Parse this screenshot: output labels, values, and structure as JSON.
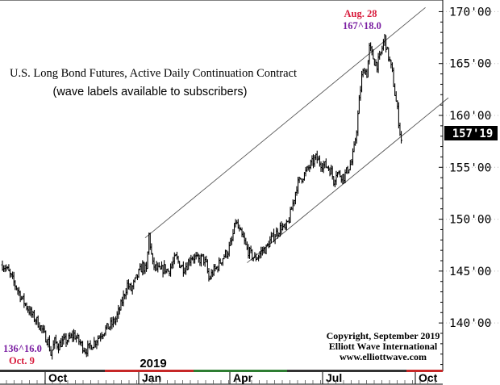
{
  "chart_data": {
    "type": "ohlc",
    "title": "U.S. Long Bond Futures, Active Daily Continuation Contract",
    "subtitle": "(wave labels available to subscribers)",
    "y_ticks": [
      "140'00",
      "145'00",
      "150'00",
      "155'00",
      "160'00",
      "165'00",
      "170'00"
    ],
    "y_tick_values": [
      140,
      145,
      150,
      155,
      160,
      165,
      170
    ],
    "ylim": [
      135.5,
      170.5
    ],
    "x_ticks": [
      "Oct",
      "Jan",
      "Apr",
      "Jul",
      "Oct"
    ],
    "year_label": "2019",
    "last_price_label": "157'19",
    "last_price": 157.6,
    "annotations": {
      "high_date": "Aug. 28",
      "high_value": "167^18.0",
      "low_value": "136^16.0",
      "low_date": "Oct. 9"
    },
    "copyright": [
      "Copyright, September 2019",
      "Elliott Wave International",
      "www.elliottwave.com"
    ],
    "series": [
      {
        "values": [
          [
            0,
            145.6
          ],
          [
            3,
            145.3
          ],
          [
            6,
            144.6
          ],
          [
            9,
            143.9
          ],
          [
            12,
            143.2
          ],
          [
            15,
            142.4
          ],
          [
            18,
            141.8
          ],
          [
            21,
            141.2
          ],
          [
            24,
            140.6
          ],
          [
            27,
            140.2
          ],
          [
            30,
            139.6
          ],
          [
            33,
            138.8
          ],
          [
            36,
            138.2
          ],
          [
            38,
            137.0
          ],
          [
            41,
            138.2
          ],
          [
            44,
            137.8
          ],
          [
            47,
            138.2
          ],
          [
            50,
            138.3
          ],
          [
            53,
            138.5
          ],
          [
            56,
            138.9
          ],
          [
            59,
            138.4
          ],
          [
            62,
            137.9
          ],
          [
            65,
            137.4
          ],
          [
            68,
            137.6
          ],
          [
            71,
            138.0
          ],
          [
            74,
            138.4
          ],
          [
            77,
            138.9
          ],
          [
            80,
            139.3
          ],
          [
            83,
            139.6
          ],
          [
            86,
            139.9
          ],
          [
            89,
            140.4
          ],
          [
            92,
            141.3
          ],
          [
            95,
            142.5
          ],
          [
            98,
            143.7
          ],
          [
            101,
            143.2
          ],
          [
            104,
            144.0
          ],
          [
            107,
            144.8
          ],
          [
            110,
            145.5
          ],
          [
            113,
            145.0
          ],
          [
            115,
            148.5
          ],
          [
            118,
            145.6
          ],
          [
            121,
            145.2
          ],
          [
            124,
            145.0
          ],
          [
            127,
            145.3
          ],
          [
            130,
            145.0
          ],
          [
            133,
            145.6
          ],
          [
            136,
            146.3
          ],
          [
            139,
            145.7
          ],
          [
            142,
            145.3
          ],
          [
            145,
            145.6
          ],
          [
            148,
            146.4
          ],
          [
            151,
            146.3
          ],
          [
            154,
            146.0
          ],
          [
            157,
            146.3
          ],
          [
            160,
            145.6
          ],
          [
            162,
            144.2
          ],
          [
            165,
            144.9
          ],
          [
            168,
            145.3
          ],
          [
            171,
            145.9
          ],
          [
            174,
            146.5
          ],
          [
            177,
            146.9
          ],
          [
            180,
            147.9
          ],
          [
            183,
            149.8
          ],
          [
            186,
            148.8
          ],
          [
            189,
            148.1
          ],
          [
            192,
            147.1
          ],
          [
            195,
            146.6
          ],
          [
            198,
            146.2
          ],
          [
            201,
            146.5
          ],
          [
            204,
            147.0
          ],
          [
            207,
            147.2
          ],
          [
            210,
            147.9
          ],
          [
            213,
            148.4
          ],
          [
            216,
            148.8
          ],
          [
            219,
            149.3
          ],
          [
            222,
            149.0
          ],
          [
            225,
            150.0
          ],
          [
            228,
            151.5
          ],
          [
            231,
            153.2
          ],
          [
            234,
            153.9
          ],
          [
            237,
            154.3
          ],
          [
            240,
            154.9
          ],
          [
            243,
            155.4
          ],
          [
            246,
            155.9
          ],
          [
            249,
            155.5
          ],
          [
            252,
            155.2
          ],
          [
            255,
            155.1
          ],
          [
            258,
            154.6
          ],
          [
            260,
            153.7
          ],
          [
            262,
            154.5
          ],
          [
            265,
            154.3
          ],
          [
            268,
            154.1
          ],
          [
            271,
            154.8
          ],
          [
            274,
            155.5
          ],
          [
            276,
            156.8
          ],
          [
            278,
            158.7
          ],
          [
            280,
            161.4
          ],
          [
            282,
            163.7
          ],
          [
            284,
            164.5
          ],
          [
            286,
            164.0
          ],
          [
            288,
            166.5
          ],
          [
            290,
            165.9
          ],
          [
            292,
            165.2
          ],
          [
            294,
            164.9
          ],
          [
            296,
            165.5
          ],
          [
            298,
            166.5
          ],
          [
            300,
            167.5
          ],
          [
            302,
            166.1
          ],
          [
            304,
            165.2
          ],
          [
            306,
            164.0
          ],
          [
            308,
            162.1
          ],
          [
            310,
            160.5
          ],
          [
            312,
            158.4
          ],
          [
            313,
            157.6
          ]
        ]
      }
    ],
    "channel_lines": [
      {
        "from": [
          112,
          148.2
        ],
        "to": [
          332,
          170.4
        ]
      },
      {
        "from": [
          192,
          145.8
        ],
        "to": [
          350,
          161.7
        ]
      }
    ]
  }
}
